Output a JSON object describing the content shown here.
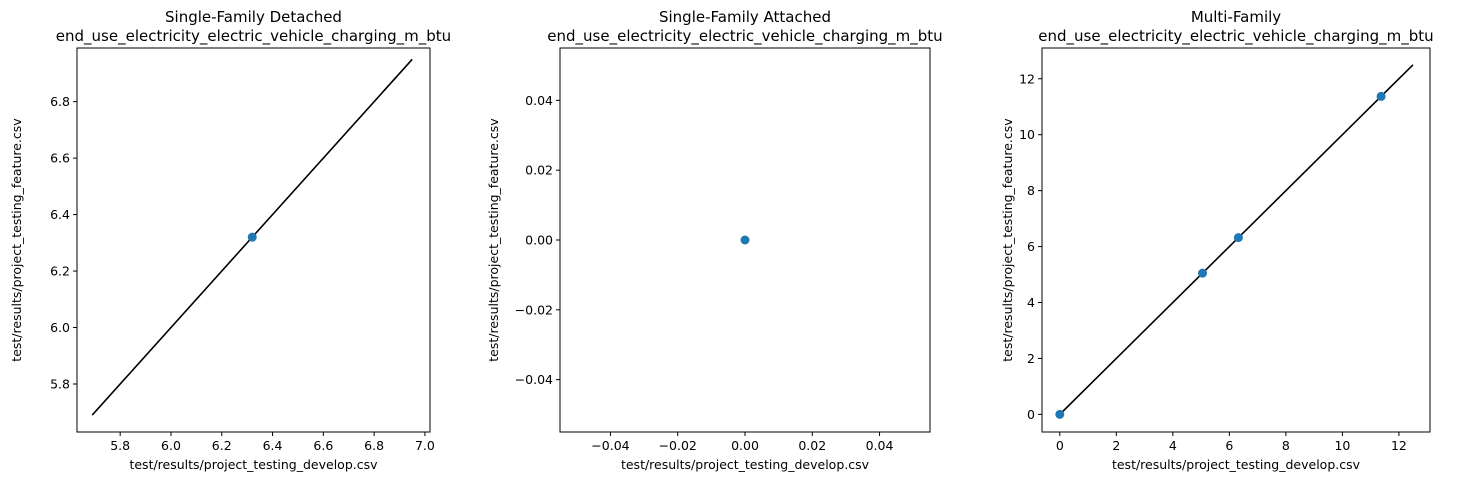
{
  "figure": {
    "background": "#ffffff"
  },
  "chart_data": [
    {
      "type": "scatter",
      "title_line1": "Single-Family Detached",
      "title_line2": "end_use_electricity_electric_vehicle_charging_m_btu",
      "xlabel": "test/results/project_testing_develop.csv",
      "ylabel": "test/results/project_testing_feature.csv",
      "xlim": [
        5.63,
        7.02
      ],
      "ylim": [
        5.63,
        6.99
      ],
      "xticks": [
        5.8,
        6.0,
        6.2,
        6.4,
        6.6,
        6.8,
        7.0
      ],
      "xtick_labels": [
        "5.8",
        "6.0",
        "6.2",
        "6.4",
        "6.6",
        "6.8",
        "7.0"
      ],
      "yticks": [
        5.8,
        6.0,
        6.2,
        6.4,
        6.6,
        6.8,
        7.0
      ],
      "ytick_labels": [
        "5.8",
        "6.0",
        "6.2",
        "6.4",
        "6.6",
        "6.8",
        "7.0"
      ],
      "points": [
        {
          "x": 6.32,
          "y": 6.32
        }
      ],
      "identity_line": [
        [
          5.69,
          5.69
        ],
        [
          6.95,
          6.95
        ]
      ],
      "point_color": "#1f77b4",
      "line_color": "#000000"
    },
    {
      "type": "scatter",
      "title_line1": "Single-Family Attached",
      "title_line2": "end_use_electricity_electric_vehicle_charging_m_btu",
      "xlabel": "test/results/project_testing_develop.csv",
      "ylabel": "test/results/project_testing_feature.csv",
      "xlim": [
        -0.055,
        0.055
      ],
      "ylim": [
        -0.055,
        0.055
      ],
      "xticks": [
        -0.04,
        -0.02,
        0.0,
        0.02,
        0.04
      ],
      "xtick_labels": [
        "−0.04",
        "−0.02",
        "0.00",
        "0.02",
        "0.04"
      ],
      "yticks": [
        -0.04,
        -0.02,
        0.0,
        0.02,
        0.04
      ],
      "ytick_labels": [
        "−0.04",
        "−0.02",
        "0.00",
        "0.02",
        "0.04"
      ],
      "points": [
        {
          "x": 0.0,
          "y": 0.0
        }
      ],
      "identity_line": null,
      "point_color": "#1f77b4",
      "line_color": "#000000"
    },
    {
      "type": "scatter",
      "title_line1": "Multi-Family",
      "title_line2": "end_use_electricity_electric_vehicle_charging_m_btu",
      "xlabel": "test/results/project_testing_develop.csv",
      "ylabel": "test/results/project_testing_feature.csv",
      "xlim": [
        -0.63,
        13.1
      ],
      "ylim": [
        -0.63,
        13.1
      ],
      "xticks": [
        0,
        2,
        4,
        6,
        8,
        10,
        12
      ],
      "xtick_labels": [
        "0",
        "2",
        "4",
        "6",
        "8",
        "10",
        "12"
      ],
      "yticks": [
        0,
        2,
        4,
        6,
        8,
        10,
        12
      ],
      "ytick_labels": [
        "0",
        "2",
        "4",
        "6",
        "8",
        "10",
        "12"
      ],
      "points": [
        {
          "x": 0.0,
          "y": 0.0
        },
        {
          "x": 5.05,
          "y": 5.05
        },
        {
          "x": 6.32,
          "y": 6.32
        },
        {
          "x": 11.37,
          "y": 11.37
        }
      ],
      "identity_line": [
        [
          0.0,
          0.0
        ],
        [
          12.5,
          12.5
        ]
      ],
      "point_color": "#1f77b4",
      "line_color": "#000000"
    }
  ]
}
